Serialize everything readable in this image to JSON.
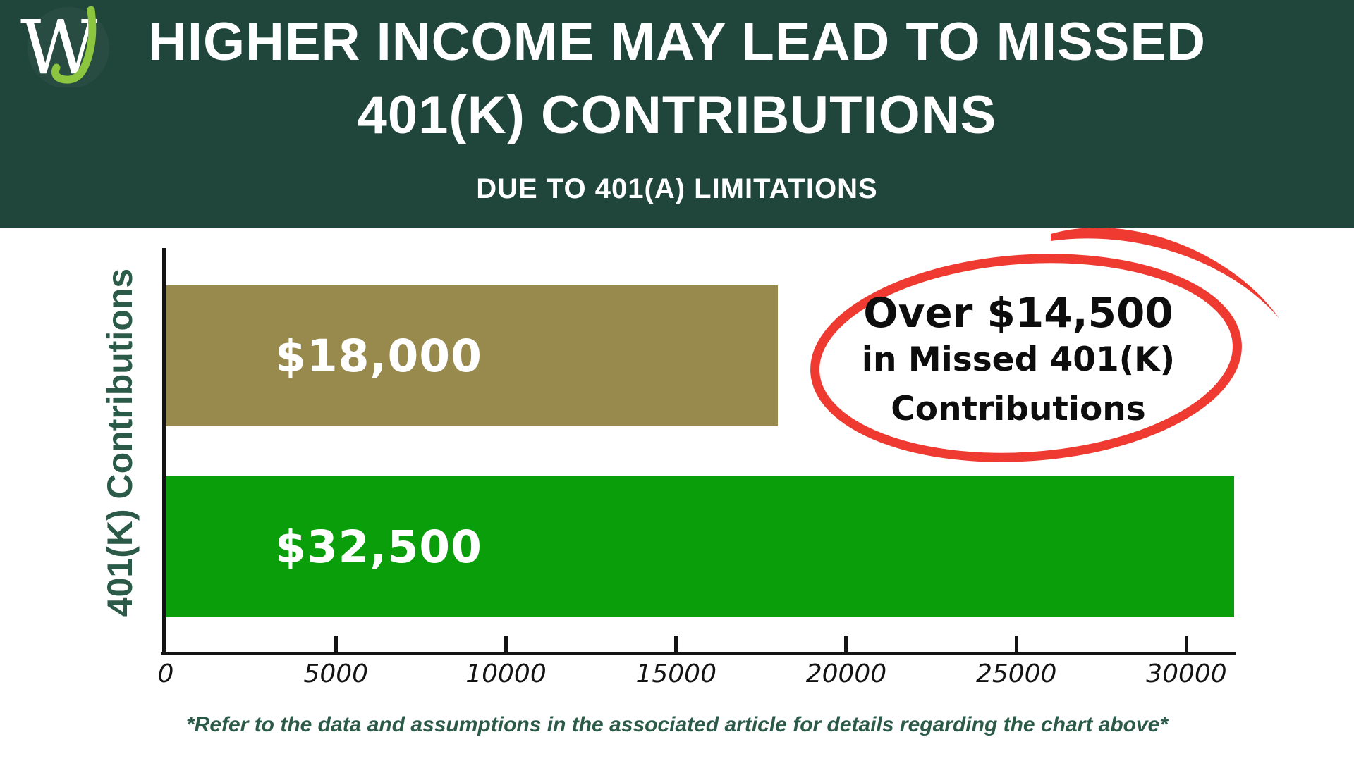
{
  "header": {
    "bg_color": "#20453a",
    "text_color": "#ffffff",
    "title_line1": "HIGHER INCOME MAY LEAD TO MISSED",
    "title_line2": "401(K) CONTRIBUTIONS",
    "subtitle": "DUE TO 401(A) LIMITATIONS"
  },
  "logo": {
    "monogram_w": "W",
    "monogram_j": "J",
    "w_color": "#ffffff",
    "j_color": "#8cc63e"
  },
  "chart_data": {
    "type": "bar",
    "orientation": "horizontal",
    "title": "",
    "ylabel": "401(K) Contributions",
    "xlabel": "",
    "grid": false,
    "x_max": 31400,
    "x_ticks": [
      0,
      5000,
      10000,
      15000,
      20000,
      25000,
      30000
    ],
    "axis_color": "#131313",
    "tick_label_color": "#131313",
    "ylabel_color": "#2b5a48",
    "bars": [
      {
        "value": 18000,
        "label": "$18,000",
        "color": "#98894d"
      },
      {
        "value": 32500,
        "label": "$32,500",
        "color": "#0a9e0a",
        "clipped_at_plot_edge": true
      }
    ]
  },
  "annotation": {
    "line1": "Over $14,500",
    "line2": "in Missed 401(K)",
    "line3": "Contributions",
    "circle_color": "#ee3a31",
    "text_color": "#0d0d0d"
  },
  "footer": {
    "text": "*Refer to the data and assumptions in the associated article for details regarding the chart above*",
    "color": "#2b5a48"
  }
}
